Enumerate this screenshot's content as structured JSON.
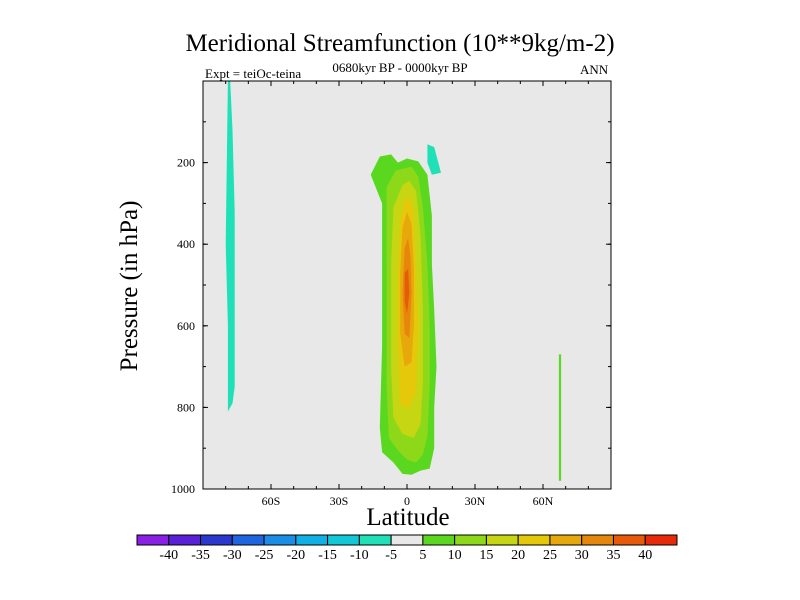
{
  "chart_data": {
    "type": "contour",
    "title": "Meridional Streamfunction (10**9kg/m-2)",
    "subtitle": "0680kyr BP - 0000kyr BP",
    "experiment_label": "Expt = teiOc-teina",
    "season_label": "ANN",
    "xlabel": "Latitude",
    "ylabel": "Pressure (in hPa)",
    "xlim": [
      -90,
      90
    ],
    "ylim": [
      1000,
      0
    ],
    "x_ticks": [
      {
        "value": -60,
        "label": "60S"
      },
      {
        "value": -30,
        "label": "30S"
      },
      {
        "value": 0,
        "label": "0"
      },
      {
        "value": 30,
        "label": "30N"
      },
      {
        "value": 60,
        "label": "60N"
      }
    ],
    "y_ticks": [
      {
        "value": 200,
        "label": "200"
      },
      {
        "value": 400,
        "label": "400"
      },
      {
        "value": 600,
        "label": "600"
      },
      {
        "value": 800,
        "label": "800"
      },
      {
        "value": 1000,
        "label": "1000"
      }
    ],
    "background_color": "#e8e8e8",
    "colorbar": {
      "levels": [
        "-40",
        "-35",
        "-30",
        "-25",
        "-20",
        "-15",
        "-10",
        "-5",
        "5",
        "10",
        "15",
        "20",
        "25",
        "30",
        "35",
        "40"
      ],
      "colors": [
        "#8a20e6",
        "#5a20d8",
        "#2b38d0",
        "#1f64e0",
        "#1a8ee6",
        "#10b0e6",
        "#12c8d6",
        "#20e0b8",
        "#e8e8e8",
        "#5ad820",
        "#8ed81a",
        "#c6d612",
        "#e6c80a",
        "#e6a80a",
        "#e6860a",
        "#e65a0a",
        "#e62a0a"
      ]
    },
    "regions": [
      {
        "name": "negative-cell-sh-high-lat",
        "level": -10,
        "points": [
          [
            -79,
            0
          ],
          [
            -78,
            0
          ],
          [
            -77,
            120
          ],
          [
            -76,
            320
          ],
          [
            -76,
            550
          ],
          [
            -76,
            750
          ],
          [
            -77,
            790
          ],
          [
            -79,
            810
          ],
          [
            -79,
            700
          ],
          [
            -79,
            600
          ],
          [
            -80,
            400
          ],
          [
            -79.5,
            200
          ]
        ]
      },
      {
        "name": "negative-cell-nh-upper",
        "level": -10,
        "points": [
          [
            9,
            155
          ],
          [
            12,
            162
          ],
          [
            15,
            225
          ],
          [
            11,
            230
          ],
          [
            9,
            200
          ]
        ]
      },
      {
        "name": "positive-cell-nh-lower",
        "level": 5,
        "points": [
          [
            67,
            670
          ],
          [
            68,
            670
          ],
          [
            68,
            980
          ],
          [
            67,
            980
          ]
        ]
      },
      {
        "name": "tropical-cell-5",
        "level": 5,
        "points": [
          [
            -16,
            230
          ],
          [
            -12,
            185
          ],
          [
            -7,
            180
          ],
          [
            -4,
            200
          ],
          [
            0,
            190
          ],
          [
            5,
            197
          ],
          [
            9,
            230
          ],
          [
            11,
            330
          ],
          [
            11,
            450
          ],
          [
            12,
            560
          ],
          [
            13,
            700
          ],
          [
            12,
            800
          ],
          [
            12,
            900
          ],
          [
            10,
            950
          ],
          [
            6,
            955
          ],
          [
            2,
            965
          ],
          [
            -2,
            963
          ],
          [
            -6,
            935
          ],
          [
            -11,
            910
          ],
          [
            -12,
            850
          ],
          [
            -11,
            650
          ],
          [
            -11,
            450
          ],
          [
            -11,
            300
          ]
        ]
      },
      {
        "name": "tropical-cell-10",
        "level": 10,
        "points": [
          [
            -9,
            260
          ],
          [
            -5,
            220
          ],
          [
            -2,
            215
          ],
          [
            2,
            210
          ],
          [
            5,
            235
          ],
          [
            7,
            310
          ],
          [
            9,
            450
          ],
          [
            10,
            600
          ],
          [
            10,
            750
          ],
          [
            9,
            870
          ],
          [
            7,
            915
          ],
          [
            4,
            935
          ],
          [
            0,
            928
          ],
          [
            -4,
            905
          ],
          [
            -8,
            875
          ],
          [
            -9,
            750
          ],
          [
            -9,
            500
          ],
          [
            -9,
            350
          ]
        ]
      },
      {
        "name": "tropical-cell-15",
        "level": 15,
        "points": [
          [
            -6,
            310
          ],
          [
            -2,
            255
          ],
          [
            1,
            245
          ],
          [
            4,
            270
          ],
          [
            6,
            380
          ],
          [
            7,
            560
          ],
          [
            7,
            740
          ],
          [
            6,
            840
          ],
          [
            3,
            875
          ],
          [
            -2,
            865
          ],
          [
            -6,
            825
          ],
          [
            -7,
            700
          ],
          [
            -7,
            450
          ]
        ]
      },
      {
        "name": "tropical-cell-20",
        "level": 20,
        "points": [
          [
            -3,
            340
          ],
          [
            -1,
            290
          ],
          [
            1,
            285
          ],
          [
            3,
            320
          ],
          [
            4,
            450
          ],
          [
            5,
            610
          ],
          [
            4,
            760
          ],
          [
            1,
            805
          ],
          [
            -3,
            790
          ],
          [
            -4,
            640
          ],
          [
            -4,
            480
          ]
        ]
      },
      {
        "name": "tropical-cell-25",
        "level": 25,
        "points": [
          [
            -2,
            360
          ],
          [
            0,
            320
          ],
          [
            2,
            350
          ],
          [
            3,
            460
          ],
          [
            3,
            600
          ],
          [
            2,
            690
          ],
          [
            -1,
            700
          ],
          [
            -3,
            620
          ],
          [
            -3,
            470
          ]
        ]
      },
      {
        "name": "tropical-cell-30",
        "level": 30,
        "points": [
          [
            -1,
            410
          ],
          [
            0.5,
            385
          ],
          [
            1.5,
            430
          ],
          [
            2,
            520
          ],
          [
            1,
            630
          ],
          [
            -1,
            620
          ],
          [
            -2,
            520
          ]
        ]
      },
      {
        "name": "tropical-cell-35",
        "level": 35,
        "points": [
          [
            -1,
            470
          ],
          [
            0.5,
            460
          ],
          [
            1,
            520
          ],
          [
            0,
            570
          ],
          [
            -1,
            540
          ]
        ]
      }
    ]
  }
}
